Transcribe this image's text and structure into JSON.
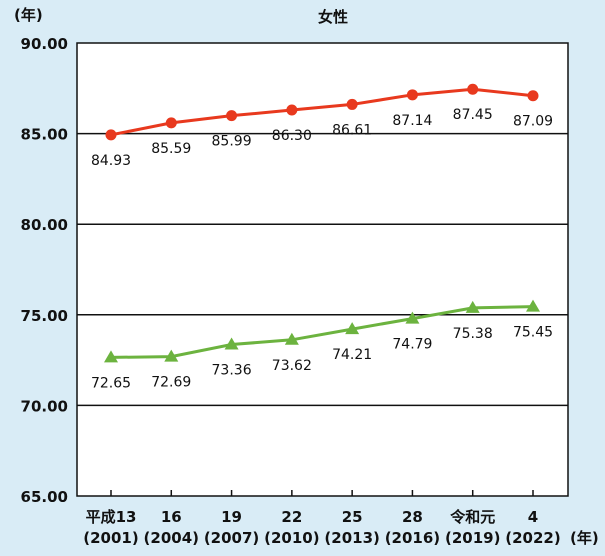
{
  "chart_data": {
    "type": "line",
    "title": "女性",
    "y_unit": "(年)",
    "x_unit": "(年)",
    "ylim": [
      65,
      90
    ],
    "y_ticks": [
      "90.00",
      "85.00",
      "80.00",
      "75.00",
      "70.00",
      "65.00"
    ],
    "y_tick_values": [
      90,
      85,
      80,
      75,
      70,
      65
    ],
    "grid": "horizontal",
    "categories": [
      {
        "era": "平成13",
        "year": "(2001)"
      },
      {
        "era": "16",
        "year": "(2004)"
      },
      {
        "era": "19",
        "year": "(2007)"
      },
      {
        "era": "22",
        "year": "(2010)"
      },
      {
        "era": "25",
        "year": "(2013)"
      },
      {
        "era": "28",
        "year": "(2016)"
      },
      {
        "era": "令和元",
        "year": "(2019)"
      },
      {
        "era": "4",
        "year": "(2022)"
      }
    ],
    "series": [
      {
        "marker": "circle",
        "color": "#e8391e",
        "values": [
          84.93,
          85.59,
          85.99,
          86.3,
          86.61,
          87.14,
          87.45,
          87.09
        ],
        "labels": [
          "84.93",
          "85.59",
          "85.99",
          "86.30",
          "86.61",
          "87.14",
          "87.45",
          "87.09"
        ]
      },
      {
        "marker": "triangle",
        "color": "#6cb33f",
        "values": [
          72.65,
          72.69,
          73.36,
          73.62,
          74.21,
          74.79,
          75.38,
          75.45
        ],
        "labels": [
          "72.65",
          "72.69",
          "73.36",
          "73.62",
          "74.21",
          "74.79",
          "75.38",
          "75.45"
        ]
      }
    ]
  }
}
